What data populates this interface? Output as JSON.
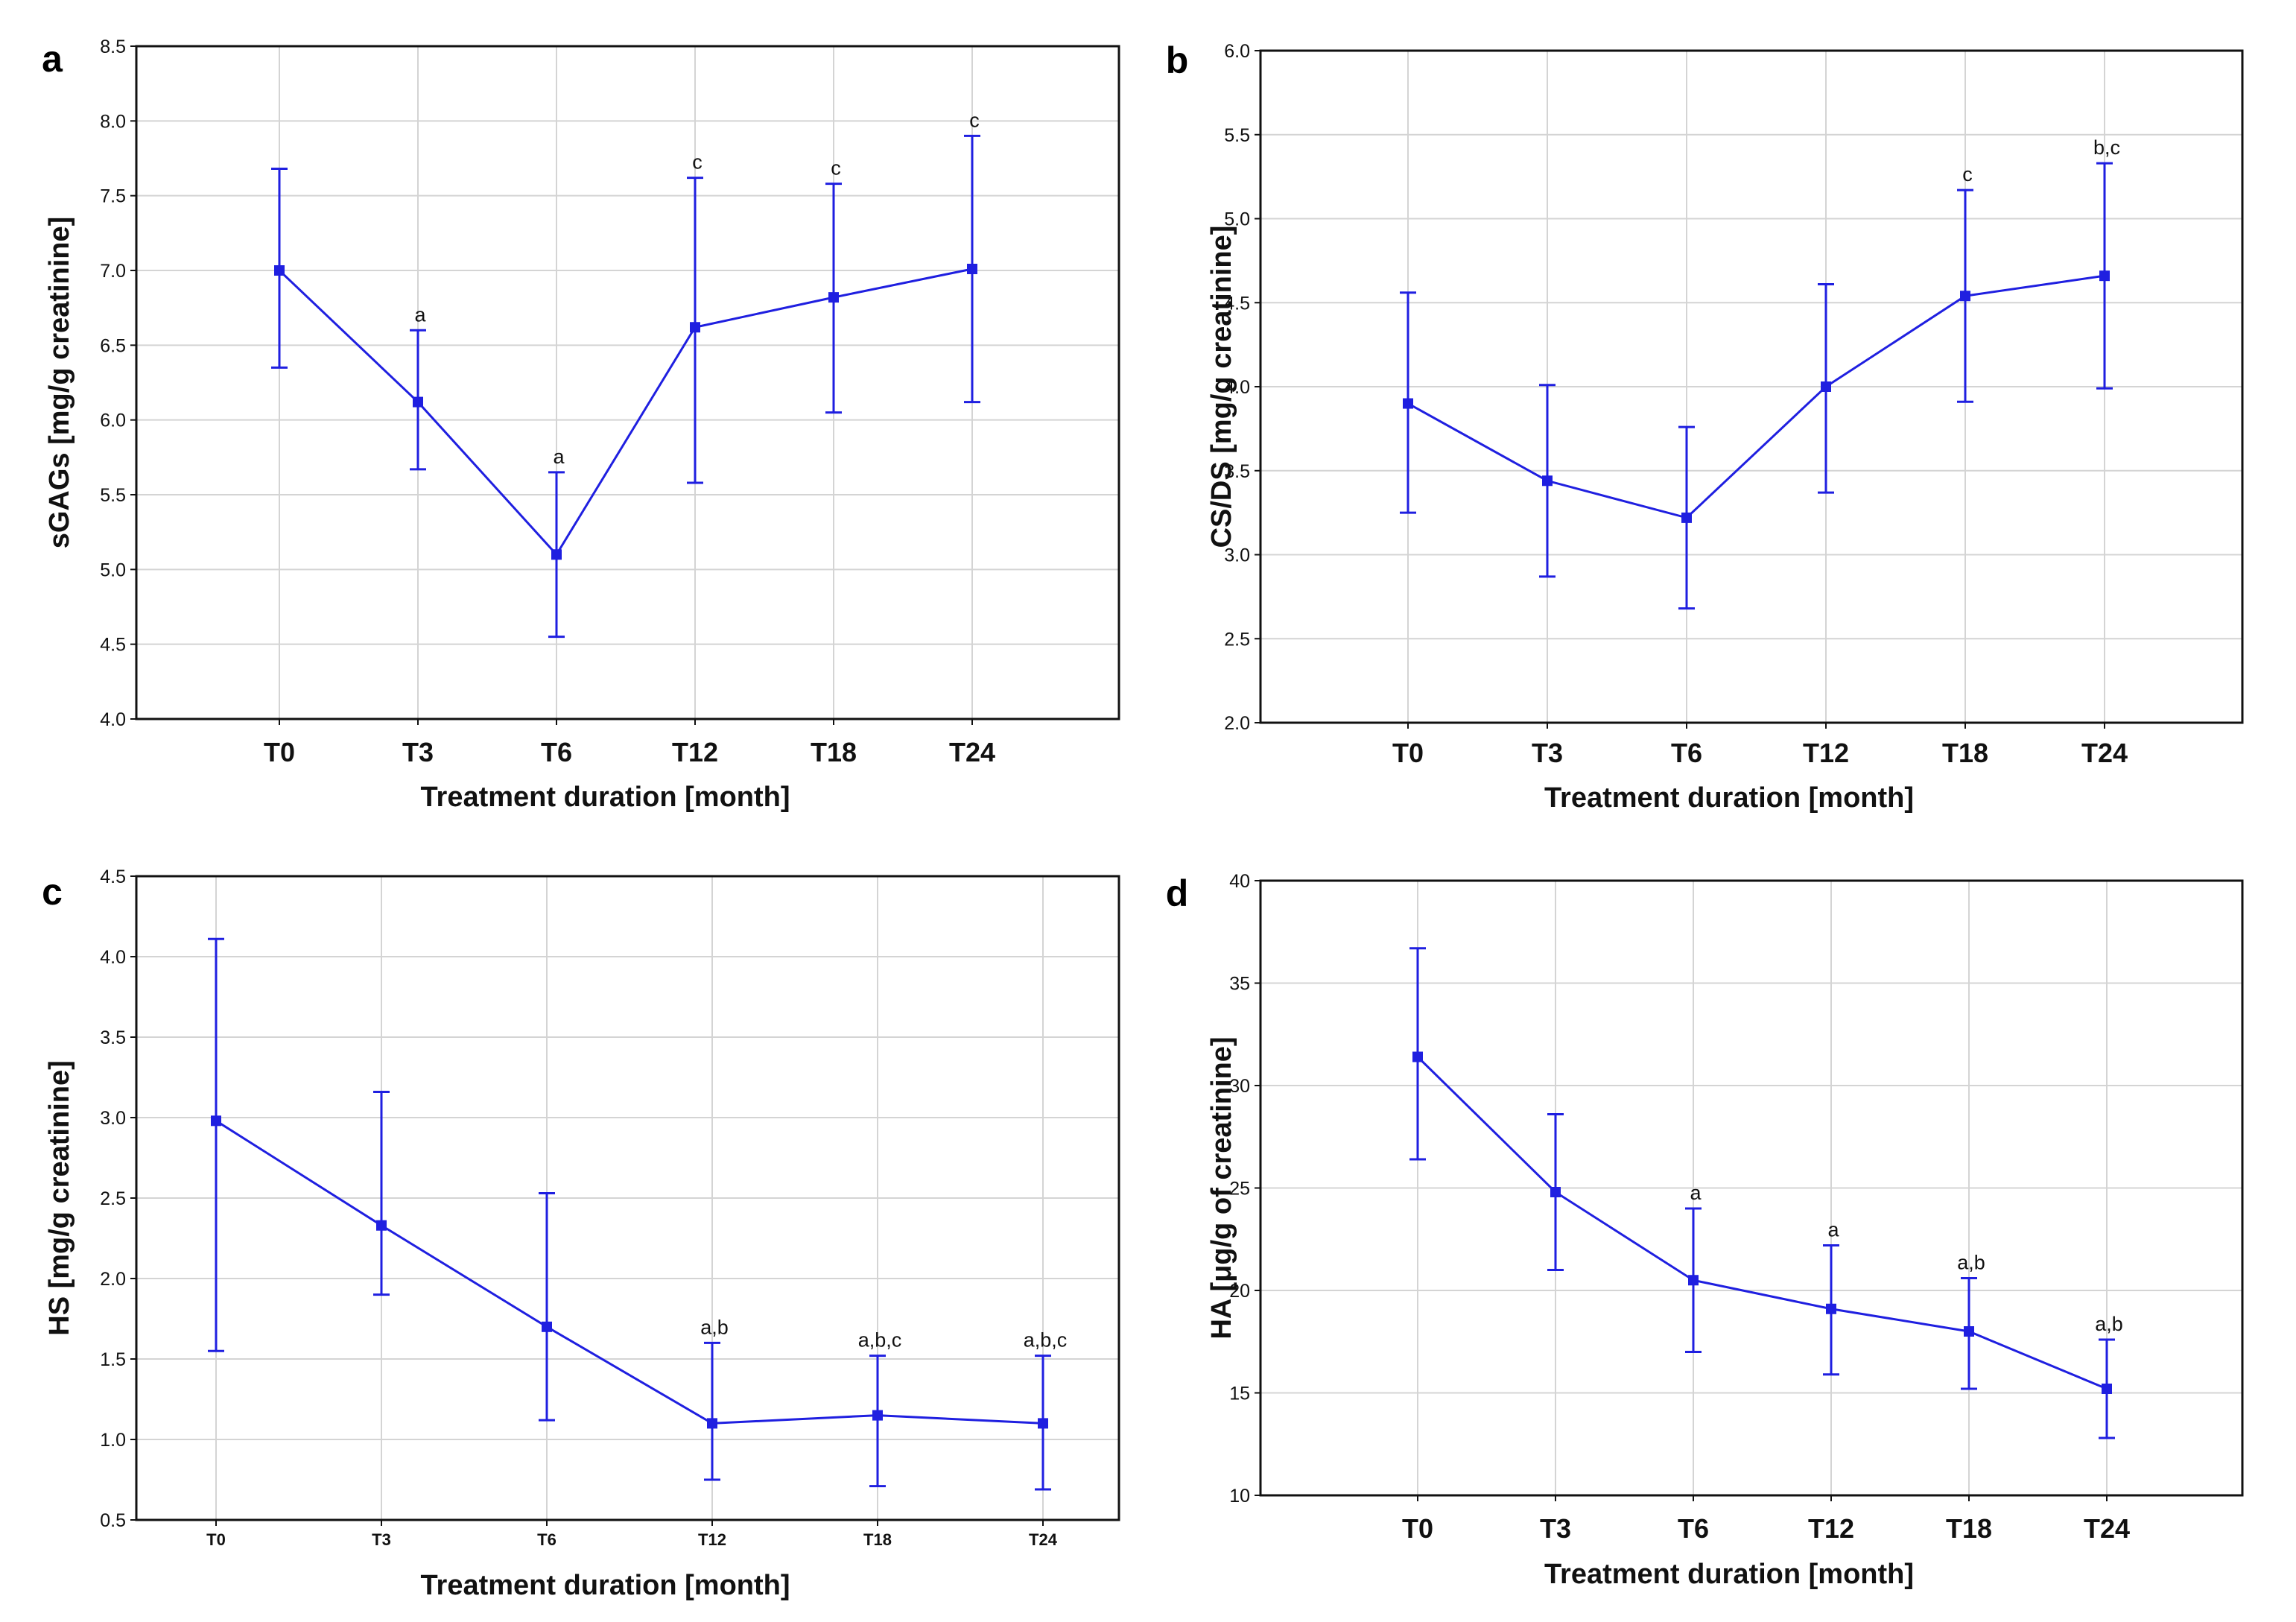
{
  "chart_data": [
    {
      "panel": "a",
      "type": "line",
      "xlabel": "Treatment duration [month]",
      "ylabel": "sGAGs [mg/g creatinine]",
      "ylim": [
        4.0,
        8.5
      ],
      "yticks": [
        "4.0",
        "4.5",
        "5.0",
        "5.5",
        "6.0",
        "6.5",
        "7.0",
        "7.5",
        "8.0",
        "8.5"
      ],
      "categories": [
        "T0",
        "T3",
        "T6",
        "T12",
        "T18",
        "T24"
      ],
      "values": [
        7.0,
        6.12,
        5.1,
        6.62,
        6.82,
        7.01
      ],
      "err_low": [
        6.35,
        5.67,
        4.55,
        5.58,
        6.05,
        6.12
      ],
      "err_high": [
        7.68,
        6.6,
        5.65,
        7.62,
        7.58,
        7.9
      ],
      "annotations": [
        "",
        "a",
        "a",
        "c",
        "c",
        "c"
      ],
      "grid": true,
      "color": "#1f1fe0"
    },
    {
      "panel": "b",
      "type": "line",
      "xlabel": "Treatment duration [month]",
      "ylabel": "CS/DS [mg/g creatinine]",
      "ylim": [
        2.0,
        6.0
      ],
      "yticks": [
        "2.0",
        "2.5",
        "3.0",
        "3.5",
        "4.0",
        "4.5",
        "5.0",
        "5.5",
        "6.0"
      ],
      "categories": [
        "T0",
        "T3",
        "T6",
        "T12",
        "T18",
        "T24"
      ],
      "values": [
        3.9,
        3.44,
        3.22,
        4.0,
        4.54,
        4.66
      ],
      "err_low": [
        3.25,
        2.87,
        2.68,
        3.37,
        3.91,
        3.99
      ],
      "err_high": [
        4.56,
        4.01,
        3.76,
        4.61,
        5.17,
        5.33
      ],
      "annotations": [
        "",
        "",
        "",
        "",
        "c",
        "b,c"
      ],
      "grid": true,
      "color": "#1f1fe0"
    },
    {
      "panel": "c",
      "type": "line",
      "xlabel": "Treatment duration [month]",
      "ylabel": "HS [mg/g creatinine]",
      "ylim": [
        0.5,
        4.5
      ],
      "yticks": [
        "0.5",
        "1.0",
        "1.5",
        "2.0",
        "2.5",
        "3.0",
        "3.5",
        "4.0",
        "4.5"
      ],
      "categories": [
        "T0",
        "T3",
        "T6",
        "T12",
        "T18",
        "T24"
      ],
      "values": [
        2.98,
        2.33,
        1.7,
        1.1,
        1.15,
        1.1
      ],
      "err_low": [
        1.55,
        1.9,
        1.12,
        0.75,
        0.71,
        0.69
      ],
      "err_high": [
        4.11,
        3.16,
        2.53,
        1.6,
        1.52,
        1.52
      ],
      "annotations": [
        "",
        "",
        "",
        "a,b",
        "a,b,c",
        "a,b,c"
      ],
      "grid": true,
      "color": "#1f1fe0"
    },
    {
      "panel": "d",
      "type": "line",
      "xlabel": "Treatment duration [month]",
      "ylabel": "HA [μg/g of creatinine]",
      "ylim": [
        10,
        40
      ],
      "yticks": [
        "10",
        "15",
        "20",
        "25",
        "30",
        "35",
        "40"
      ],
      "categories": [
        "T0",
        "T3",
        "T6",
        "T12",
        "T18",
        "T24"
      ],
      "values": [
        31.4,
        24.8,
        20.5,
        19.1,
        18.0,
        15.2
      ],
      "err_low": [
        26.4,
        21.0,
        17.0,
        15.9,
        15.2,
        12.8
      ],
      "err_high": [
        36.7,
        28.6,
        24.0,
        22.2,
        20.6,
        17.6
      ],
      "annotations": [
        "",
        "",
        "a",
        "a",
        "a,b",
        "a,b"
      ],
      "grid": true,
      "color": "#1f1fe0"
    }
  ]
}
